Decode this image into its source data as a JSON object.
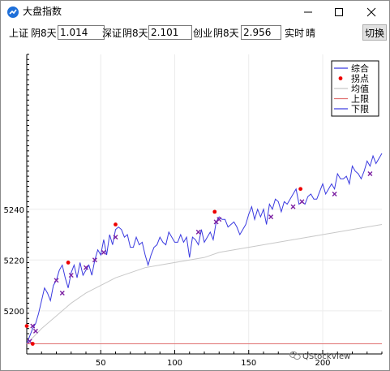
{
  "window": {
    "title": "大盘指数",
    "buttons": {
      "minimize": "—",
      "maximize": "☐",
      "close": "✕"
    },
    "app_icon": "chart-app-icon"
  },
  "toolbar": {
    "sh_label": "上证",
    "sh_weather": "阴8天",
    "sh_value": "1.014",
    "sz_label": "深证",
    "sz_weather": "阴8天",
    "sz_value": "2.101",
    "cy_label": "创业",
    "cy_weather": "阴8天",
    "cy_value": "2.956",
    "rt_label": "实时",
    "rt_weather": "晴",
    "switch_label": "切换"
  },
  "watermark": "QStockView",
  "colors": {
    "series": "#3a3ae0",
    "average": "#c8c8c8",
    "upper_limit": "#e07070",
    "lower_limit": "#4040e0",
    "inflection": "#ee0000",
    "marker": "#7b1fa2"
  },
  "chart_data": {
    "type": "line",
    "x_ticks": [
      50,
      100,
      150,
      200
    ],
    "y_ticks": [
      5200,
      5220,
      5240
    ],
    "xlim": [
      0,
      240
    ],
    "ylim": [
      5183,
      5301
    ],
    "grid": true,
    "legend_position": "top-right",
    "series": [
      {
        "name": "综合",
        "x": [
          0,
          2,
          4,
          6,
          8,
          10,
          12,
          14,
          16,
          18,
          20,
          22,
          24,
          26,
          28,
          30,
          32,
          34,
          36,
          38,
          40,
          42,
          44,
          46,
          48,
          50,
          52,
          54,
          56,
          58,
          60,
          62,
          64,
          66,
          68,
          70,
          72,
          74,
          76,
          78,
          80,
          82,
          84,
          86,
          88,
          90,
          92,
          94,
          96,
          98,
          100,
          102,
          104,
          106,
          108,
          110,
          112,
          114,
          116,
          118,
          120,
          122,
          124,
          126,
          128,
          130,
          132,
          134,
          136,
          138,
          140,
          142,
          144,
          146,
          148,
          150,
          152,
          154,
          156,
          158,
          160,
          162,
          164,
          166,
          168,
          170,
          172,
          174,
          176,
          178,
          180,
          182,
          184,
          186,
          188,
          190,
          192,
          194,
          196,
          198,
          200,
          202,
          204,
          206,
          208,
          210,
          212,
          214,
          216,
          218,
          220,
          222,
          224,
          226,
          228,
          230,
          232,
          234,
          236,
          238,
          240
        ],
        "y": [
          5187,
          5190,
          5193,
          5195,
          5199,
          5204,
          5209,
          5207,
          5204,
          5210,
          5212,
          5216,
          5218,
          5213,
          5209,
          5215,
          5218,
          5213,
          5219,
          5214,
          5216,
          5218,
          5214,
          5220,
          5224,
          5222,
          5228,
          5222,
          5230,
          5226,
          5232,
          5233,
          5232,
          5229,
          5230,
          5225,
          5225,
          5229,
          5226,
          5227,
          5222,
          5218,
          5222,
          5225,
          5226,
          5229,
          5227,
          5226,
          5231,
          5229,
          5227,
          5227,
          5230,
          5227,
          5229,
          5221,
          5229,
          5228,
          5226,
          5232,
          5227,
          5229,
          5231,
          5228,
          5235,
          5237,
          5236,
          5236,
          5233,
          5234,
          5235,
          5233,
          5230,
          5232,
          5234,
          5238,
          5241,
          5236,
          5240,
          5237,
          5240,
          5234,
          5242,
          5240,
          5244,
          5243,
          5239,
          5243,
          5242,
          5244,
          5246,
          5248,
          5242,
          5243,
          5242,
          5245,
          5246,
          5244,
          5244,
          5247,
          5250,
          5246,
          5248,
          5250,
          5248,
          5254,
          5252,
          5252,
          5253,
          5250,
          5257,
          5255,
          5254,
          5252,
          5255,
          5259,
          5257,
          5261,
          5258,
          5260,
          5262
        ]
      },
      {
        "name": "均值",
        "x": [
          0,
          10,
          20,
          30,
          40,
          50,
          60,
          70,
          80,
          90,
          100,
          110,
          120,
          130,
          140,
          150,
          160,
          170,
          180,
          190,
          200,
          210,
          220,
          230,
          240
        ],
        "y": [
          5187,
          5193,
          5198,
          5203,
          5207,
          5210,
          5213,
          5215,
          5217,
          5218,
          5219,
          5220,
          5221,
          5223,
          5224,
          5225,
          5226,
          5227,
          5228,
          5229,
          5230,
          5231,
          5232,
          5233,
          5234
        ]
      },
      {
        "name": "上限",
        "x": [
          0,
          240
        ],
        "y": [
          5187,
          5187
        ]
      }
    ],
    "inflection_points": [
      {
        "x": 28,
        "y": 5219
      },
      {
        "x": 60,
        "y": 5234
      },
      {
        "x": 127,
        "y": 5239
      },
      {
        "x": 185,
        "y": 5248
      },
      {
        "x": 0,
        "y": 5194
      },
      {
        "x": 4,
        "y": 5187
      }
    ],
    "markers": [
      {
        "x": 2,
        "y": 5188
      },
      {
        "x": 4,
        "y": 5194
      },
      {
        "x": 6,
        "y": 5192
      },
      {
        "x": 20,
        "y": 5212
      },
      {
        "x": 24,
        "y": 5207
      },
      {
        "x": 30,
        "y": 5214
      },
      {
        "x": 40,
        "y": 5217
      },
      {
        "x": 46,
        "y": 5220
      },
      {
        "x": 52,
        "y": 5223
      },
      {
        "x": 60,
        "y": 5229
      },
      {
        "x": 116,
        "y": 5231
      },
      {
        "x": 128,
        "y": 5235
      },
      {
        "x": 130,
        "y": 5236
      },
      {
        "x": 165,
        "y": 5237
      },
      {
        "x": 180,
        "y": 5241
      },
      {
        "x": 186,
        "y": 5243
      },
      {
        "x": 208,
        "y": 5246
      },
      {
        "x": 232,
        "y": 5254
      }
    ],
    "legend": [
      "综合",
      "拐点",
      "均值",
      "上限",
      "下限"
    ]
  }
}
